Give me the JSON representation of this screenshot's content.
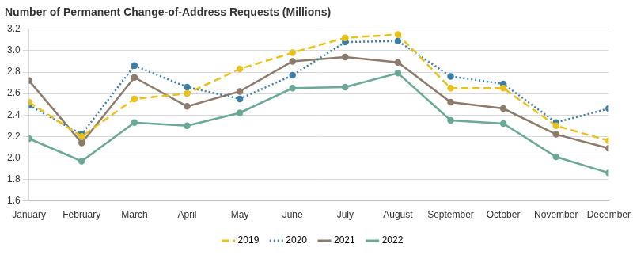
{
  "chart_data": {
    "type": "line",
    "title": "Number of Permanent Change-of-Address Requests (Millions)",
    "categories": [
      "January",
      "February",
      "March",
      "April",
      "May",
      "June",
      "July",
      "August",
      "September",
      "October",
      "November",
      "December"
    ],
    "series": [
      {
        "name": "2019",
        "color": "#e8c11c",
        "line_style": "dashed",
        "marker": "circle",
        "values": [
          2.52,
          2.2,
          2.55,
          2.6,
          2.83,
          2.98,
          3.12,
          3.15,
          2.65,
          2.65,
          2.3,
          2.16
        ]
      },
      {
        "name": "2020",
        "color": "#3d7ea6",
        "line_style": "dotted",
        "marker": "circle",
        "values": [
          2.49,
          2.22,
          2.86,
          2.66,
          2.55,
          2.77,
          3.08,
          3.09,
          2.76,
          2.69,
          2.33,
          2.46
        ]
      },
      {
        "name": "2021",
        "color": "#8c7b6b",
        "line_style": "solid",
        "marker": "circle",
        "values": [
          2.72,
          2.14,
          2.75,
          2.48,
          2.62,
          2.9,
          2.94,
          2.89,
          2.52,
          2.46,
          2.22,
          2.09
        ]
      },
      {
        "name": "2022",
        "color": "#6aa897",
        "line_style": "solid",
        "marker": "circle",
        "values": [
          2.18,
          1.97,
          2.33,
          2.3,
          2.42,
          2.65,
          2.66,
          2.79,
          2.35,
          2.32,
          2.01,
          1.86
        ]
      }
    ],
    "ylim": [
      1.6,
      3.2
    ],
    "yticks": [
      1.6,
      1.8,
      {
        "value": 2,
        "label": "2.0"
      },
      2.2,
      2.4,
      2.6,
      2.8,
      {
        "value": 3,
        "label": "3.0"
      },
      3.2
    ],
    "grid": true,
    "legend": "bottom"
  }
}
